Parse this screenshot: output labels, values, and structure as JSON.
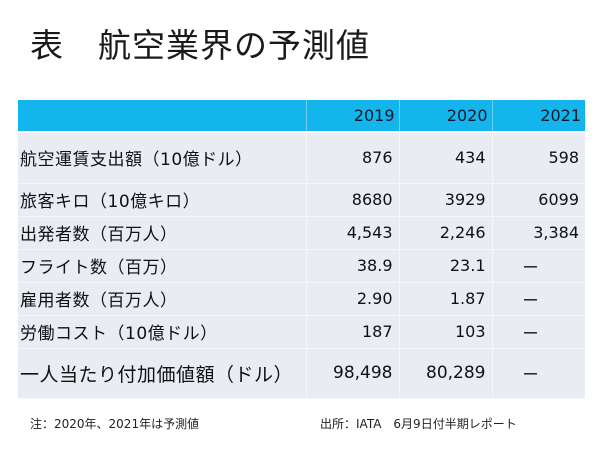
{
  "title": "表　航空業界の予測値",
  "table": {
    "header": [
      "",
      "2019",
      "2020",
      "2021"
    ],
    "rows": [
      {
        "label": "航空運賃支出額（10億ドル）",
        "values": [
          "876",
          "434",
          "598"
        ]
      },
      {
        "label": "旅客キロ（10億キロ）",
        "values": [
          "8680",
          "3929",
          "6099"
        ]
      },
      {
        "label": "出発者数（百万人）",
        "values": [
          "4,543",
          "2,246",
          "3,384"
        ]
      },
      {
        "label": "フライト数（百万）",
        "values": [
          "38.9",
          "23.1",
          "ー"
        ]
      },
      {
        "label": "雇用者数（百万人）",
        "values": [
          "2.90",
          "1.87",
          "ー"
        ]
      },
      {
        "label": "労働コスト（10億ドル）",
        "values": [
          "187",
          "103",
          "ー"
        ]
      },
      {
        "label": "一人当たり付加価値額（ドル）",
        "values": [
          "98,498",
          "80,289",
          "ー"
        ]
      }
    ]
  },
  "footnotes": {
    "note": "注：2020年、2021年は予測値",
    "source": "出所：IATA　6月9日付半期レポート"
  },
  "colors": {
    "header_bg": "#14b4ec",
    "row_bg": "#e9ecf3"
  }
}
